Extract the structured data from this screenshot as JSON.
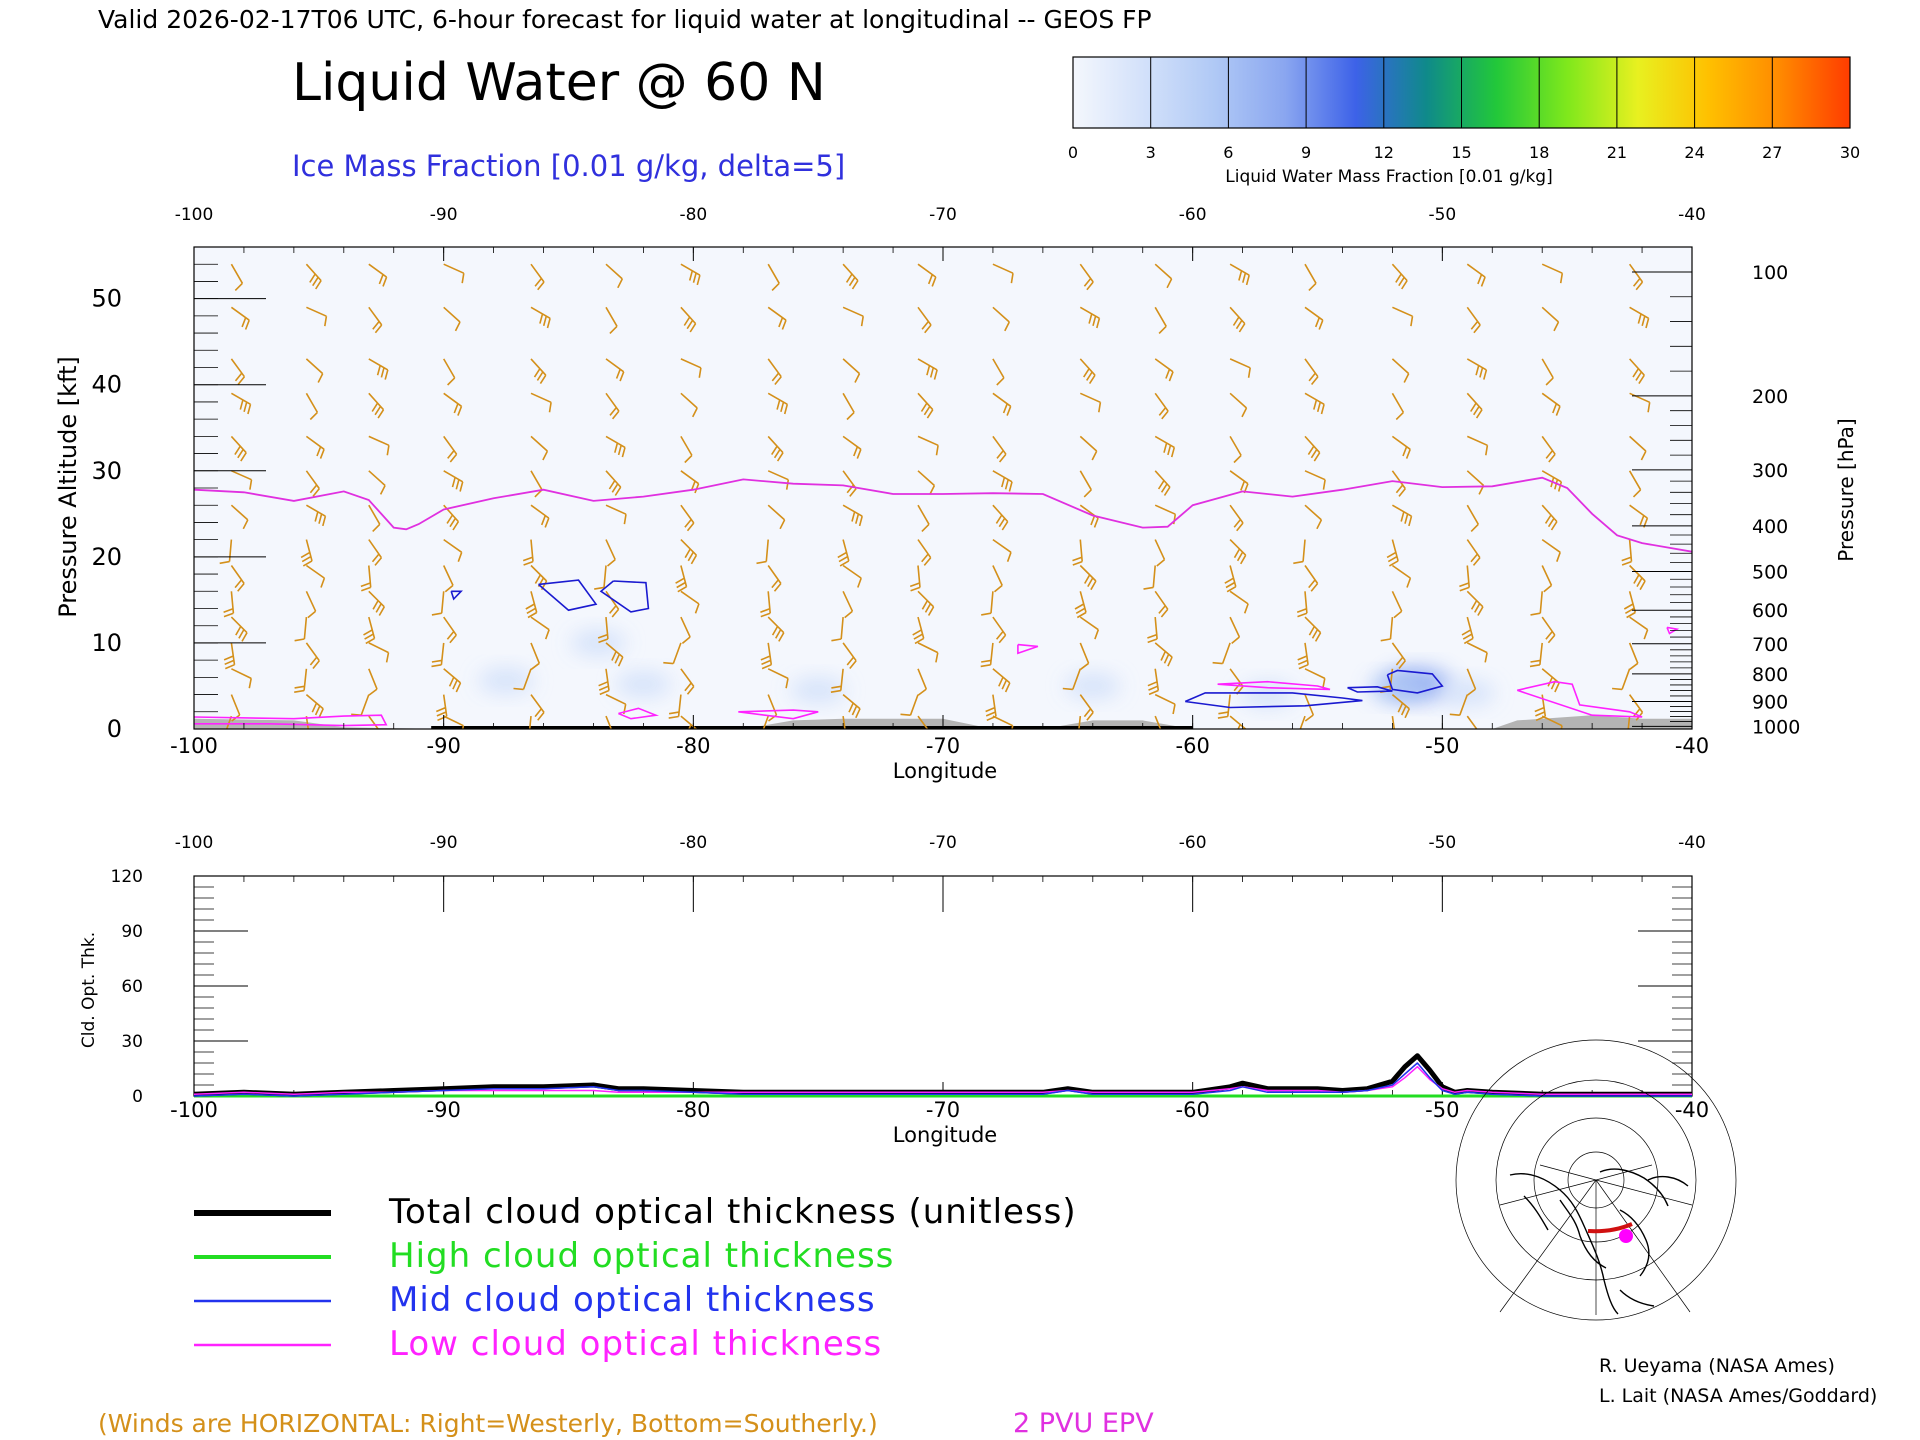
{
  "header": {
    "valid_line": "Valid 2026-02-17T06 UTC, 6-hour forecast for liquid water at longitudinal -- GEOS FP",
    "title": "Liquid Water @ 60 N",
    "subtitle": "Ice Mass Fraction [0.01 g/kg, delta=5]"
  },
  "colorbar": {
    "label": "Liquid Water Mass Fraction [0.01 g/kg]",
    "ticks": [
      "0",
      "3",
      "6",
      "9",
      "12",
      "15",
      "18",
      "21",
      "24",
      "27",
      "30"
    ],
    "colors": [
      "#f4f7fd",
      "#d3e1fa",
      "#b0c9f5",
      "#8aa6f0",
      "#3d62e8",
      "#0f8a8a",
      "#22c83a",
      "#7fe81c",
      "#e8f020",
      "#ffc000",
      "#ff8a00",
      "#ff3c00"
    ]
  },
  "credits": {
    "line1": "R. Ueyama (NASA Ames)",
    "line2": "L. Lait (NASA Ames/Goddard)"
  },
  "footer": {
    "winds_note": "(Winds are HORIZONTAL: Right=Westerly, Bottom=Southerly.)",
    "epv_label": "2 PVU EPV"
  },
  "legend": [
    {
      "label": "Total cloud optical thickness (unitless)",
      "color": "#000000",
      "width": 5
    },
    {
      "label": "High cloud optical thickness",
      "color": "#22dd22",
      "width": 3
    },
    {
      "label": "Mid cloud optical thickness",
      "color": "#2233ee",
      "width": 1.5
    },
    {
      "label": "Low cloud optical thickness",
      "color": "#ff22ff",
      "width": 1.5
    }
  ],
  "colors": {
    "wind_barbs": "#d4901a",
    "epv": "#e030e0",
    "ice_contour": "#1a1ad0",
    "low_cloud": "#ff22ff",
    "terrain": "#b4b4b4"
  },
  "chart_data": [
    {
      "type": "area",
      "name": "cross-section",
      "xlabel": "Longitude",
      "ylabel": "Pressure Altitude [kft]",
      "ylabel_right": "Pressure [hPa]",
      "xlim": [
        -100,
        -40
      ],
      "ylim": [
        0,
        56
      ],
      "x_ticks": [
        "-100",
        "-90",
        "-80",
        "-70",
        "-60",
        "-50",
        "-40"
      ],
      "x_tick_values": [
        -100,
        -90,
        -80,
        -70,
        -60,
        -50,
        -40
      ],
      "y_ticks": [
        "0",
        "10",
        "20",
        "30",
        "40",
        "50"
      ],
      "y_tick_values": [
        0,
        10,
        20,
        30,
        40,
        50
      ],
      "pressure_ticks": [
        {
          "label": "100",
          "kft": 53.1
        },
        {
          "label": "200",
          "kft": 38.7
        },
        {
          "label": "300",
          "kft": 30.1
        },
        {
          "label": "400",
          "kft": 23.6
        },
        {
          "label": "500",
          "kft": 18.3
        },
        {
          "label": "600",
          "kft": 13.8
        },
        {
          "label": "700",
          "kft": 9.9
        },
        {
          "label": "800",
          "kft": 6.4
        },
        {
          "label": "900",
          "kft": 3.2
        },
        {
          "label": "1000",
          "kft": 0.3
        }
      ],
      "epv_2pvu_kft": {
        "lon": [
          -100,
          -98,
          -96,
          -94,
          -93,
          -92,
          -91.5,
          -91,
          -90,
          -88,
          -86,
          -84,
          -82,
          -80,
          -78,
          -76,
          -74,
          -72,
          -70,
          -68,
          -66,
          -64,
          -62,
          -61,
          -60,
          -58,
          -56,
          -54,
          -52,
          -50,
          -48,
          -46,
          -45,
          -44,
          -43,
          -42,
          -40
        ],
        "kft": [
          27.8,
          27.5,
          26.5,
          27.6,
          26.6,
          23.4,
          23.2,
          23.8,
          25.5,
          26.8,
          27.8,
          26.5,
          27.0,
          27.8,
          29.0,
          28.5,
          28.3,
          27.3,
          27.3,
          27.4,
          27.3,
          24.8,
          23.4,
          23.5,
          26.0,
          27.6,
          27.0,
          27.8,
          28.8,
          28.1,
          28.2,
          29.2,
          28.0,
          25.0,
          22.5,
          21.6,
          20.6
        ]
      },
      "liquid_water_blobs": [
        {
          "lon": -51.0,
          "kft": 5.2,
          "value": 9
        },
        {
          "lon": -51.8,
          "kft": 4.8,
          "value": 6
        },
        {
          "lon": -83.8,
          "kft": 10.0,
          "value": 3
        },
        {
          "lon": -87.5,
          "kft": 5.6,
          "value": 2
        },
        {
          "lon": -82.0,
          "kft": 5.2,
          "value": 2
        },
        {
          "lon": -75.0,
          "kft": 4.5,
          "value": 2
        },
        {
          "lon": -64.0,
          "kft": 5.0,
          "value": 2
        },
        {
          "lon": -57.0,
          "kft": 4.0,
          "value": 3
        },
        {
          "lon": -49.0,
          "kft": 4.2,
          "value": 2
        }
      ],
      "ice_contours": [
        {
          "lon": [
            -86.2,
            -84.6,
            -83.9,
            -85.0,
            -86.2
          ],
          "kft": [
            16.8,
            17.3,
            14.5,
            13.8,
            16.8
          ]
        },
        {
          "lon": [
            -83.2,
            -81.9,
            -81.8,
            -82.5,
            -83.7,
            -83.2
          ],
          "kft": [
            17.2,
            17.0,
            14.0,
            13.6,
            16.0,
            17.2
          ]
        },
        {
          "lon": [
            -89.7,
            -89.3,
            -89.6,
            -89.7
          ],
          "kft": [
            16.0,
            16.0,
            15.1,
            16.0
          ]
        },
        {
          "lon": [
            -60.3,
            -59.5,
            -56.0,
            -54.0,
            -53.2,
            -55.5,
            -58.5,
            -60.3
          ],
          "kft": [
            3.2,
            4.2,
            4.2,
            3.6,
            3.3,
            2.7,
            2.5,
            3.2
          ]
        },
        {
          "lon": [
            -52.2,
            -51.8,
            -50.4,
            -50.0,
            -51.0,
            -52.0,
            -52.2
          ],
          "kft": [
            6.3,
            6.8,
            6.4,
            5.0,
            4.2,
            4.6,
            6.3
          ]
        },
        {
          "lon": [
            -53.8,
            -52.6,
            -52.0,
            -53.4,
            -53.8
          ],
          "kft": [
            4.8,
            4.9,
            4.4,
            4.3,
            4.8
          ]
        }
      ],
      "low_cloud_contours": [
        {
          "lon": [
            -100,
            -96,
            -94,
            -92.5,
            -92.3,
            -94,
            -97,
            -100
          ],
          "kft": [
            1.4,
            1.2,
            1.5,
            1.6,
            0.5,
            0.4,
            0.6,
            0.6
          ]
        },
        {
          "lon": [
            -83.0,
            -82.2,
            -81.5,
            -82.5,
            -83.0
          ],
          "kft": [
            1.8,
            2.4,
            1.6,
            1.2,
            1.8
          ]
        },
        {
          "lon": [
            -78.2,
            -76.0,
            -75.0,
            -76.0,
            -78.2
          ],
          "kft": [
            2.0,
            2.2,
            2.0,
            1.2,
            2.0
          ]
        },
        {
          "lon": [
            -67.0,
            -66.2,
            -67.0,
            -67.0
          ],
          "kft": [
            9.8,
            9.6,
            8.8,
            9.8
          ]
        },
        {
          "lon": [
            -59.0,
            -57.0,
            -55.0,
            -54.5,
            -57.0,
            -59.0
          ],
          "kft": [
            5.2,
            5.5,
            5.0,
            4.6,
            4.8,
            5.2
          ]
        },
        {
          "lon": [
            -47.0,
            -45.5,
            -44.8,
            -44.5,
            -42.5,
            -42.0,
            -44.0,
            -47.0
          ],
          "kft": [
            4.5,
            5.5,
            5.2,
            2.8,
            2.0,
            1.4,
            1.6,
            4.5
          ]
        },
        {
          "lon": [
            -41.0,
            -40.6,
            -40.9,
            -41.0
          ],
          "kft": [
            11.8,
            11.6,
            11.1,
            11.8
          ]
        }
      ],
      "terrain_lon": [
        -100,
        -96,
        -94,
        -90,
        -88,
        -86,
        -84,
        -82,
        -80,
        -78,
        -76,
        -74,
        -72,
        -70,
        -68,
        -66,
        -64,
        -62,
        -60,
        -58,
        -56,
        -54,
        -52,
        -50,
        -48,
        -47,
        -46,
        -44,
        -42,
        -40
      ],
      "terrain_kft": [
        1.2,
        1.0,
        0.2,
        0,
        0,
        0,
        0,
        0,
        0,
        0,
        1.0,
        1.2,
        1.2,
        1.2,
        0,
        0,
        1.0,
        1.0,
        0,
        0,
        0,
        0,
        0,
        0,
        0,
        1.0,
        1.2,
        1.6,
        1.2,
        1.2
      ],
      "barb_lon": [
        -98.5,
        -95.5,
        -93,
        -90,
        -86.5,
        -83.5,
        -80.5,
        -77,
        -74,
        -71,
        -68,
        -64.5,
        -61.5,
        -58.5,
        -55.5,
        -52,
        -49,
        -46,
        -42.5
      ],
      "barb_kft": [
        54,
        49,
        43,
        39,
        34,
        30,
        26,
        22,
        19,
        16,
        13,
        10,
        7,
        4,
        1.5
      ]
    },
    {
      "type": "line",
      "name": "cloud-optical-thickness",
      "xlabel": "Longitude",
      "ylabel": "Cld. Opt. Thk.",
      "xlim": [
        -100,
        -40
      ],
      "ylim": [
        0,
        120
      ],
      "x_ticks": [
        "-100",
        "-90",
        "-80",
        "-70",
        "-60",
        "-50",
        "-40"
      ],
      "x_tick_values": [
        -100,
        -90,
        -80,
        -70,
        -60,
        -50,
        -40
      ],
      "y_ticks": [
        "0",
        "30",
        "60",
        "90",
        "120"
      ],
      "y_tick_values": [
        0,
        30,
        60,
        90,
        120
      ],
      "x": [
        -100,
        -98,
        -96,
        -94,
        -92,
        -90,
        -88,
        -86,
        -84,
        -83,
        -82,
        -80,
        -78,
        -76,
        -74,
        -72,
        -70,
        -68,
        -66,
        -65,
        -64,
        -62,
        -60,
        -58.5,
        -58,
        -57,
        -56,
        -55,
        -54,
        -53,
        -52,
        -51.5,
        -51,
        -50.5,
        -50,
        -49.5,
        -49,
        -48,
        -46,
        -44,
        -42,
        -40
      ],
      "series": [
        {
          "name": "Total cloud optical thickness (unitless)",
          "values": [
            1,
            2,
            1,
            2,
            3,
            4,
            5,
            5,
            6,
            4,
            4,
            3,
            2,
            2,
            2,
            2,
            2,
            2,
            2,
            4,
            2,
            2,
            2,
            5,
            7,
            4,
            4,
            4,
            3,
            4,
            8,
            16,
            22,
            14,
            5,
            2,
            3,
            2,
            1,
            1,
            1,
            1
          ]
        },
        {
          "name": "High cloud optical thickness",
          "values": [
            0,
            0,
            0,
            0,
            0,
            0,
            0,
            0,
            0,
            0,
            0,
            0,
            0,
            0,
            0,
            0,
            0,
            0,
            0,
            0,
            0,
            0,
            0,
            0,
            0,
            0,
            0,
            0,
            0,
            0,
            0,
            0,
            0,
            0,
            0,
            0,
            0,
            0,
            0,
            0,
            0,
            0
          ]
        },
        {
          "name": "Mid cloud optical thickness",
          "values": [
            0,
            1,
            0,
            1,
            2,
            3,
            4,
            4,
            5,
            3,
            3,
            2,
            1,
            1,
            1,
            1,
            1,
            1,
            1,
            3,
            1,
            1,
            1,
            3,
            5,
            2,
            2,
            2,
            2,
            3,
            6,
            12,
            18,
            10,
            3,
            1,
            2,
            1,
            0,
            0,
            0,
            0
          ]
        },
        {
          "name": "Low cloud optical thickness",
          "values": [
            1,
            2,
            1,
            2,
            2,
            3,
            3,
            3,
            3,
            2,
            2,
            2,
            2,
            2,
            2,
            2,
            2,
            2,
            2,
            3,
            2,
            2,
            2,
            4,
            5,
            3,
            3,
            3,
            2,
            3,
            5,
            10,
            16,
            9,
            4,
            2,
            3,
            2,
            1,
            1,
            1,
            1
          ]
        }
      ]
    }
  ]
}
